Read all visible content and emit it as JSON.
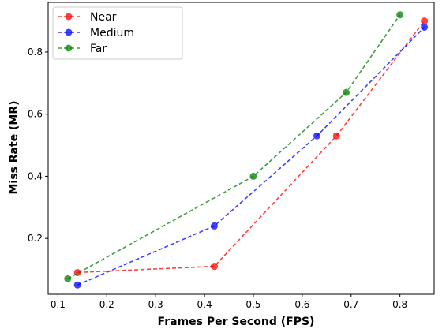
{
  "chart_data": {
    "type": "line",
    "title": "",
    "xlabel": "Frames Per Second (FPS)",
    "ylabel": "Miss Rate (MR)",
    "xlim": [
      0.08,
      0.87
    ],
    "ylim": [
      0.02,
      0.96
    ],
    "xticks": [
      0.1,
      0.2,
      0.3,
      0.4,
      0.5,
      0.6,
      0.7,
      0.8
    ],
    "xtick_labels": [
      "0.1",
      "0.2",
      "0.3",
      "0.4",
      "0.5",
      "0.6",
      "0.7",
      "0.8"
    ],
    "yticks": [
      0.2,
      0.4,
      0.6,
      0.8
    ],
    "ytick_labels": [
      "0.2",
      "0.4",
      "0.6",
      "0.8"
    ],
    "grid": false,
    "legend_position": "top-left",
    "series": [
      {
        "name": "Near",
        "color": "#ff0000",
        "x": [
          0.14,
          0.42,
          0.67,
          0.85
        ],
        "y": [
          0.09,
          0.11,
          0.53,
          0.9
        ]
      },
      {
        "name": "Medium",
        "color": "#0000ff",
        "x": [
          0.14,
          0.42,
          0.63,
          0.85
        ],
        "y": [
          0.05,
          0.24,
          0.53,
          0.88
        ]
      },
      {
        "name": "Far",
        "color": "#008000",
        "x": [
          0.12,
          0.5,
          0.69,
          0.8
        ],
        "y": [
          0.07,
          0.4,
          0.67,
          0.92
        ]
      }
    ]
  }
}
